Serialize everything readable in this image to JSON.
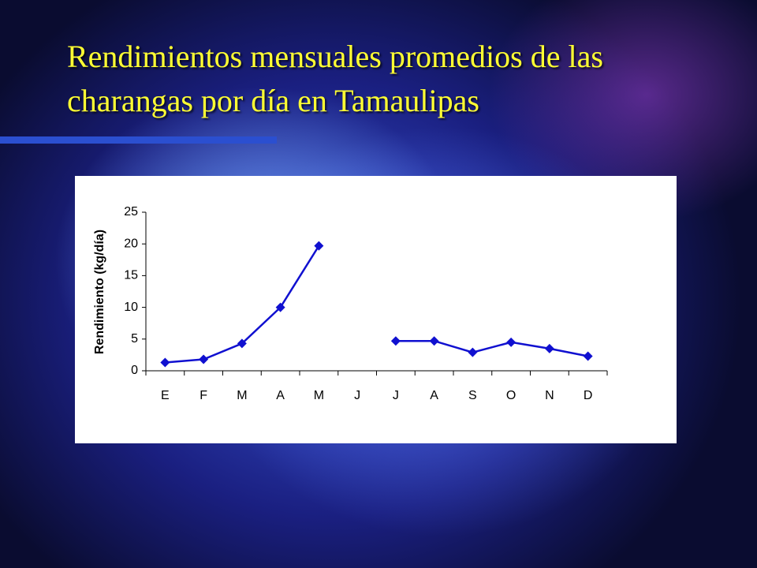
{
  "chart_data": {
    "type": "line",
    "title": "Rendimientos mensuales promedios de las charangas por día en Tamaulipas",
    "y_label": "Rendimiento (kg/día)",
    "categories": [
      "E",
      "F",
      "M",
      "A",
      "M",
      "J",
      "J",
      "A",
      "S",
      "O",
      "N",
      "D"
    ],
    "values": [
      1.3,
      1.8,
      4.3,
      10,
      19.7,
      null,
      4.7,
      4.7,
      2.9,
      4.5,
      3.5,
      2.3
    ],
    "color": "#1010d0",
    "ylim": [
      0,
      25
    ],
    "yticks": [
      0,
      5,
      10,
      15,
      20,
      25
    ],
    "grid": false
  }
}
